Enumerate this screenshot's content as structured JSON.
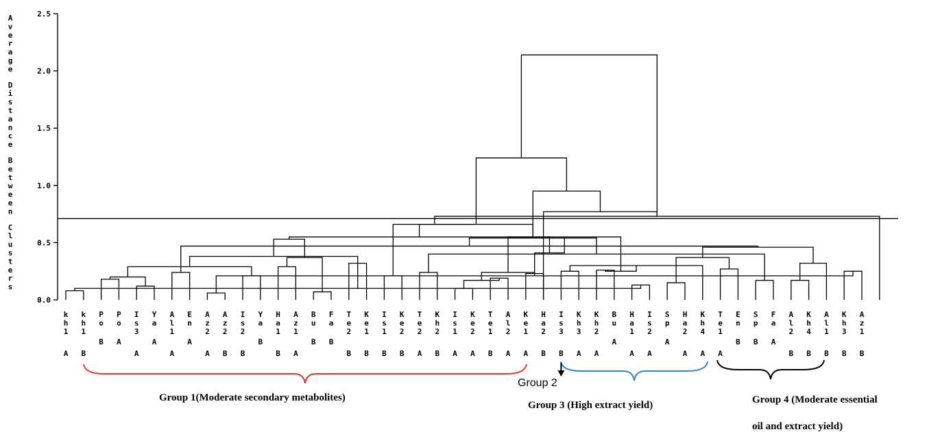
{
  "yaxis": {
    "label": "Average Distance Between Clusters",
    "ticks": [
      "2.5",
      "2.0",
      "1.5",
      "1.0",
      "0.5",
      "0.0"
    ],
    "range": [
      0,
      2.5
    ],
    "cut_line": 0.71
  },
  "leaves": [
    {
      "name": "kh1",
      "suffix": "A"
    },
    {
      "name": "kh1",
      "suffix": "B"
    },
    {
      "name": "Po",
      "suffix": "B"
    },
    {
      "name": "Po",
      "suffix": "A"
    },
    {
      "name": "Is3",
      "suffix": "A"
    },
    {
      "name": "Ya",
      "suffix": "A"
    },
    {
      "name": "Al1",
      "suffix": "A"
    },
    {
      "name": "En",
      "suffix": "A"
    },
    {
      "name": "Az2",
      "suffix": "A"
    },
    {
      "name": "Az2",
      "suffix": "B"
    },
    {
      "name": "Is2",
      "suffix": "B"
    },
    {
      "name": "Ya",
      "suffix": "B"
    },
    {
      "name": "Ha1",
      "suffix": "B"
    },
    {
      "name": "Az1",
      "suffix": "A"
    },
    {
      "name": "Bu",
      "suffix": "B"
    },
    {
      "name": "Fa",
      "suffix": "B"
    },
    {
      "name": "Te2",
      "suffix": "B"
    },
    {
      "name": "Ke1",
      "suffix": "B"
    },
    {
      "name": "Is1",
      "suffix": "B"
    },
    {
      "name": "Ke2",
      "suffix": "B"
    },
    {
      "name": "Te2",
      "suffix": "A"
    },
    {
      "name": "Kh2",
      "suffix": "B"
    },
    {
      "name": "Is1",
      "suffix": "A"
    },
    {
      "name": "Ke2",
      "suffix": "A"
    },
    {
      "name": "Te1",
      "suffix": "B"
    },
    {
      "name": "Al2",
      "suffix": "A"
    },
    {
      "name": "Ke1",
      "suffix": "A"
    },
    {
      "name": "Ha2",
      "suffix": "B"
    },
    {
      "name": "Is3",
      "suffix": "B"
    },
    {
      "name": "Kh3",
      "suffix": "A"
    },
    {
      "name": "Kh2",
      "suffix": "A"
    },
    {
      "name": "Bu",
      "suffix": "A"
    },
    {
      "name": "Ha1",
      "suffix": "A"
    },
    {
      "name": "Is2",
      "suffix": "A"
    },
    {
      "name": "Sp",
      "suffix": "A"
    },
    {
      "name": "Ha2",
      "suffix": "A"
    },
    {
      "name": "Kh4",
      "suffix": "A"
    },
    {
      "name": "Te1",
      "suffix": "A"
    },
    {
      "name": "En",
      "suffix": "B"
    },
    {
      "name": "Sp",
      "suffix": "B"
    },
    {
      "name": "Fa",
      "suffix": "A"
    },
    {
      "name": "Al2",
      "suffix": "B"
    },
    {
      "name": "Kh4",
      "suffix": "B"
    },
    {
      "name": "Al1",
      "suffix": "B"
    },
    {
      "name": "Kh3",
      "suffix": "B"
    },
    {
      "name": "Az1",
      "suffix": "B"
    }
  ],
  "merges": [
    [
      1,
      2,
      0.08
    ],
    [
      3,
      4,
      0.18
    ],
    [
      5,
      6,
      0.12
    ],
    [
      9,
      10,
      0.06
    ],
    [
      11,
      12,
      0.21
    ],
    [
      13,
      14,
      0.29
    ],
    [
      15,
      16,
      0.07
    ],
    [
      17,
      18,
      0.32
    ],
    [
      19,
      20,
      0.21
    ],
    [
      21,
      22,
      0.24
    ],
    [
      23,
      24,
      0.1
    ],
    [
      25,
      26,
      0.19
    ],
    [
      27,
      28,
      0.23
    ],
    [
      29,
      30,
      0.25
    ],
    [
      31,
      32,
      0.26
    ],
    [
      33,
      34,
      0.13
    ],
    [
      35,
      36,
      0.15
    ],
    [
      38,
      39,
      0.27
    ],
    [
      40,
      41,
      0.17
    ],
    [
      42,
      43,
      0.17
    ],
    [
      45,
      46,
      0.25
    ],
    [
      7,
      8,
      0.24
    ],
    [
      -16,
      -1,
      0.1
    ],
    [
      -2,
      -3,
      0.2
    ],
    [
      -4,
      -21,
      0.21
    ],
    [
      -19,
      -10,
      0.4
    ],
    [
      -11,
      -12,
      0.17
    ],
    [
      -14,
      37,
      0.3
    ],
    [
      -17,
      -18,
      0.37
    ],
    [
      -20,
      44,
      0.32
    ],
    [
      -24,
      -5,
      0.29
    ],
    [
      -7,
      -6,
      0.37
    ],
    [
      -29,
      -30,
      0.46
    ],
    [
      -27,
      -13,
      0.24
    ],
    [
      -28,
      -15,
      0.25
    ],
    [
      -22,
      -33,
      0.47
    ],
    [
      -34,
      -35,
      0.55
    ],
    [
      -31,
      -23,
      0.38
    ],
    [
      -38,
      -32,
      0.53
    ],
    [
      -37,
      -25,
      0.41
    ],
    [
      -40,
      -39,
      0.55
    ],
    [
      -36,
      -26,
      0.54
    ],
    [
      -42,
      -41,
      0.66
    ],
    [
      -43,
      -9,
      0.66
    ],
    [
      -44,
      47,
      0.73
    ],
    [
      -45,
      28,
      0.77
    ],
    [
      -46,
      -42,
      0.95
    ],
    [
      -47,
      -43,
      1.24
    ],
    [
      -48,
      -45,
      2.14
    ]
  ],
  "annotations": {
    "group1": "Group 1(Moderate secondary metabolites)",
    "group2": "Group 2",
    "group3": "Group 3 (High extract yield)",
    "group4_line1": "Group 4 (Moderate essential",
    "group4_line2": "oil and extract yield)"
  },
  "colors": {
    "group1_brace": "#e8332a",
    "group3_brace": "#2f86d1",
    "group4_brace": "#000000",
    "lines": "#000000"
  }
}
